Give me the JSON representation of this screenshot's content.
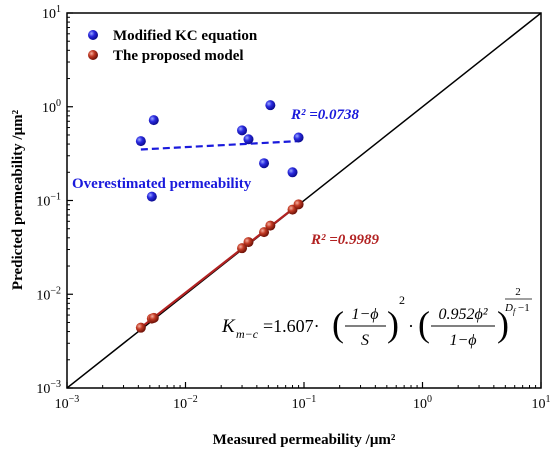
{
  "chart_data": {
    "type": "scatter",
    "xlabel": "Measured permeability /μm²",
    "ylabel": "Predicted permeability /μm²",
    "x_scale": "log",
    "y_scale": "log",
    "xlim": [
      0.001,
      10
    ],
    "ylim": [
      0.001,
      10
    ],
    "x_ticks": [
      {
        "value": 0.001,
        "base": "10",
        "exp": "−3"
      },
      {
        "value": 0.01,
        "base": "10",
        "exp": "−2"
      },
      {
        "value": 0.1,
        "base": "10",
        "exp": "−1"
      },
      {
        "value": 1,
        "base": "10",
        "exp": "0"
      },
      {
        "value": 10,
        "base": "10",
        "exp": "1"
      }
    ],
    "y_ticks": [
      {
        "value": 0.001,
        "base": "10",
        "exp": "−3"
      },
      {
        "value": 0.01,
        "base": "10",
        "exp": "−2"
      },
      {
        "value": 0.1,
        "base": "10",
        "exp": "−1"
      },
      {
        "value": 1,
        "base": "10",
        "exp": "0"
      },
      {
        "value": 10,
        "base": "10",
        "exp": "1"
      }
    ],
    "legend_position": "top-left",
    "reference_line": {
      "type": "y=x",
      "color": "#000000"
    },
    "series": [
      {
        "name": "Modified KC equation",
        "color": "#1a1adc",
        "points": [
          {
            "x": 0.0042,
            "y": 0.43
          },
          {
            "x": 0.0052,
            "y": 0.11
          },
          {
            "x": 0.0054,
            "y": 0.72
          },
          {
            "x": 0.03,
            "y": 0.56
          },
          {
            "x": 0.034,
            "y": 0.45
          },
          {
            "x": 0.046,
            "y": 0.25
          },
          {
            "x": 0.052,
            "y": 1.04
          },
          {
            "x": 0.08,
            "y": 0.2
          },
          {
            "x": 0.09,
            "y": 0.47
          }
        ],
        "fit": {
          "x": [
            0.0042,
            0.09
          ],
          "y": [
            0.35,
            0.43
          ],
          "style": "dashed"
        },
        "r2_label": "R² =0.0738"
      },
      {
        "name": "The proposed model",
        "color": "#b22222",
        "points": [
          {
            "x": 0.0042,
            "y": 0.0044
          },
          {
            "x": 0.0052,
            "y": 0.0055
          },
          {
            "x": 0.0054,
            "y": 0.0056
          },
          {
            "x": 0.03,
            "y": 0.031
          },
          {
            "x": 0.034,
            "y": 0.036
          },
          {
            "x": 0.046,
            "y": 0.046
          },
          {
            "x": 0.052,
            "y": 0.054
          },
          {
            "x": 0.08,
            "y": 0.08
          },
          {
            "x": 0.09,
            "y": 0.091
          }
        ],
        "fit": {
          "x": [
            0.0042,
            0.09
          ],
          "y": [
            0.0044,
            0.091
          ],
          "style": "solid"
        },
        "r2_label": "R² =0.9989"
      }
    ],
    "annotations": {
      "overestimated": "Overestimated permeability"
    },
    "equation": {
      "lhs_main": "K",
      "lhs_sub": "m−c",
      "eq": "=1.607·",
      "frac1_num": "1−ϕ",
      "frac1_den": "S",
      "sq": "2",
      "dot": "·",
      "frac2_num": "0.952ϕ²",
      "frac2_den": "1−ϕ",
      "exp_num": "2",
      "exp_den": "D",
      "exp_den_sub": "f",
      "exp_den_tail": "−1"
    }
  }
}
